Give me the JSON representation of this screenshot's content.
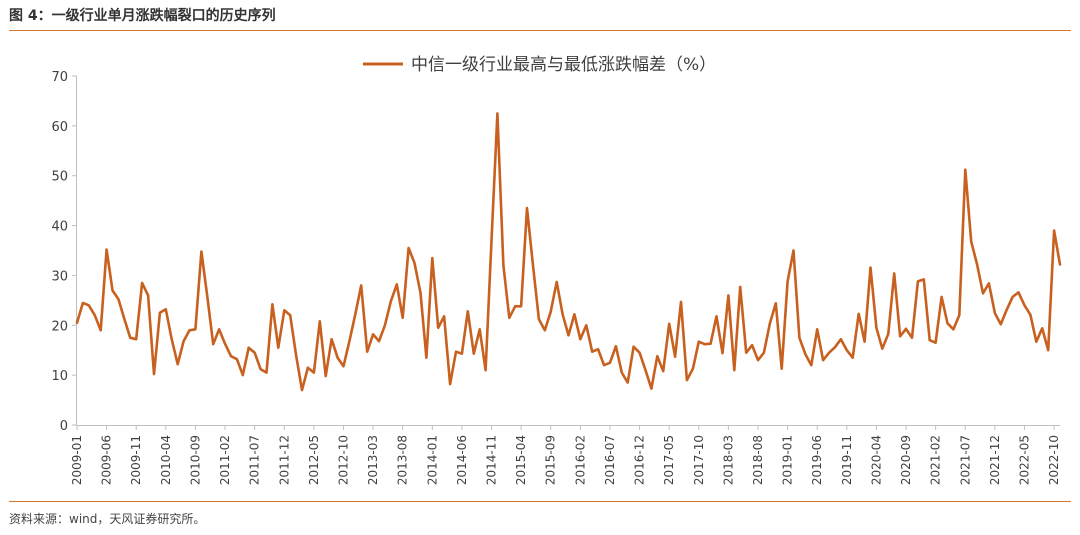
{
  "figure": {
    "title": "图 4：一级行业单月涨跌幅裂口的历史序列",
    "source": "资料来源：wind，天风证券研究所。"
  },
  "colors": {
    "line": "#c8601f",
    "axis": "#bfbfbf",
    "rule": "#d9772b"
  },
  "chart_data": {
    "type": "line",
    "title": "",
    "xlabel": "",
    "ylabel": "",
    "ylim": [
      0,
      70
    ],
    "yticks": [
      0,
      10,
      20,
      30,
      40,
      50,
      60,
      70
    ],
    "grid": false,
    "legend_position": "top-center",
    "x_tick_labels": [
      "2009-01",
      "2009-06",
      "2009-11",
      "2010-04",
      "2010-09",
      "2011-02",
      "2011-07",
      "2011-12",
      "2012-05",
      "2012-10",
      "2013-03",
      "2013-08",
      "2014-01",
      "2014-06",
      "2014-11",
      "2015-04",
      "2015-09",
      "2016-02",
      "2016-07",
      "2016-12",
      "2017-05",
      "2017-10",
      "2018-03",
      "2018-08",
      "2019-01",
      "2019-06",
      "2019-11",
      "2020-04",
      "2020-09",
      "2021-02",
      "2021-07",
      "2021-12",
      "2022-05",
      "2022-10"
    ],
    "x_start": "2009-01",
    "series": [
      {
        "name": "中信一级行业最高与最低涨跌幅差（%）",
        "values": [
          20.5,
          24.5,
          24.0,
          22.0,
          19.0,
          35.2,
          27.0,
          25.2,
          21.2,
          17.5,
          17.2,
          28.5,
          26.0,
          10.2,
          22.5,
          23.2,
          17.2,
          12.2,
          16.8,
          19.0,
          19.2,
          34.8,
          25.8,
          16.2,
          19.2,
          16.3,
          13.8,
          13.2,
          10.0,
          15.5,
          14.5,
          11.2,
          10.5,
          24.2,
          15.5,
          23.0,
          22.0,
          14.0,
          7.0,
          11.5,
          10.5,
          20.8,
          9.8,
          17.2,
          13.5,
          11.8,
          16.8,
          22.2,
          28.0,
          14.7,
          18.2,
          16.8,
          20.0,
          24.8,
          28.2,
          21.5,
          35.5,
          32.5,
          26.5,
          13.5,
          33.5,
          19.5,
          21.8,
          8.2,
          14.7,
          14.3,
          22.8,
          14.3,
          19.2,
          11.0,
          37.0,
          62.5,
          32.0,
          21.5,
          23.8,
          23.8,
          43.5,
          32.0,
          21.2,
          19.0,
          22.7,
          28.7,
          22.2,
          18.0,
          22.2,
          17.2,
          20.0,
          14.7,
          15.2,
          12.0,
          12.5,
          15.8,
          10.5,
          8.5,
          15.7,
          14.5,
          11.0,
          7.3,
          13.8,
          10.8,
          20.3,
          13.7,
          24.7,
          9.0,
          11.3,
          16.7,
          16.2,
          16.3,
          21.8,
          14.4,
          26.0,
          11.0,
          27.7,
          14.5,
          16.0,
          13.0,
          14.5,
          20.3,
          24.4,
          11.3,
          28.8,
          35.0,
          17.5,
          14.2,
          12.0,
          19.2,
          13.0,
          14.5,
          15.6,
          17.2,
          15.0,
          13.5,
          22.3,
          16.7,
          31.6,
          19.5,
          15.3,
          18.3,
          30.4,
          17.8,
          19.3,
          17.5,
          28.8,
          29.2,
          17.0,
          16.5,
          25.7,
          20.4,
          19.2,
          22.0,
          51.2,
          36.8,
          32.2,
          26.4,
          28.4,
          22.4,
          20.2,
          23.1,
          25.7,
          26.6,
          24.0,
          22.1,
          16.7,
          19.4,
          15.0,
          39.0,
          32.2
        ]
      }
    ]
  }
}
